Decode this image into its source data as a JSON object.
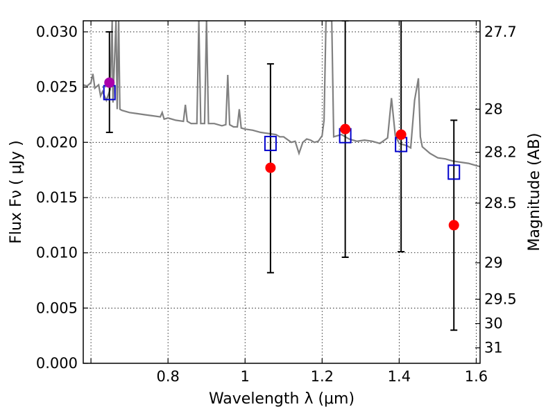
{
  "chart_data": {
    "type": "scatter",
    "xlabel": "Wavelength  λ (μm)",
    "ylabel": "Flux  Fν  ( μJy )",
    "y2label": "Magnitude (AB)",
    "xlim": [
      0.58,
      1.61
    ],
    "ylim": [
      0.0,
      0.031
    ],
    "grid": true,
    "x_ticks": [
      0.6,
      0.8,
      1.0,
      1.2,
      1.4,
      1.6
    ],
    "x_tick_labels": [
      "",
      "0.8",
      "1",
      "1.2",
      "1.4",
      "1.6"
    ],
    "y_ticks": [
      0.0,
      0.005,
      0.01,
      0.015,
      0.02,
      0.025,
      0.03
    ],
    "y_tick_labels": [
      "0.000",
      "0.005",
      "0.010",
      "0.015",
      "0.020",
      "0.025",
      "0.030"
    ],
    "mag_ticks": [
      {
        "label": "27.7",
        "flux": 0.03
      },
      {
        "label": "28",
        "flux": 0.023
      },
      {
        "label": "28.2",
        "flux": 0.0191
      },
      {
        "label": "28.5",
        "flux": 0.0145
      },
      {
        "label": "29",
        "flux": 0.0091
      },
      {
        "label": "29.5",
        "flux": 0.0058
      },
      {
        "label": "30",
        "flux": 0.0036
      },
      {
        "label": "31",
        "flux": 0.0014
      }
    ],
    "model_spectrum": {
      "color": "#808080",
      "points": [
        [
          0.58,
          0.0252
        ],
        [
          0.59,
          0.0251
        ],
        [
          0.6,
          0.0254
        ],
        [
          0.605,
          0.0262
        ],
        [
          0.61,
          0.0249
        ],
        [
          0.62,
          0.0252
        ],
        [
          0.625,
          0.0242
        ],
        [
          0.63,
          0.0246
        ],
        [
          0.64,
          0.0238
        ],
        [
          0.65,
          0.0248
        ],
        [
          0.655,
          0.031
        ],
        [
          0.657,
          0.0236
        ],
        [
          0.665,
          0.031
        ],
        [
          0.668,
          0.023
        ],
        [
          0.672,
          0.031
        ],
        [
          0.675,
          0.023
        ],
        [
          0.68,
          0.0229
        ],
        [
          0.7,
          0.0227
        ],
        [
          0.72,
          0.0226
        ],
        [
          0.74,
          0.0225
        ],
        [
          0.76,
          0.0224
        ],
        [
          0.78,
          0.0223
        ],
        [
          0.785,
          0.0227
        ],
        [
          0.79,
          0.0221
        ],
        [
          0.8,
          0.0222
        ],
        [
          0.82,
          0.022
        ],
        [
          0.84,
          0.0219
        ],
        [
          0.845,
          0.0234
        ],
        [
          0.85,
          0.0219
        ],
        [
          0.86,
          0.0217
        ],
        [
          0.875,
          0.0217
        ],
        [
          0.88,
          0.031
        ],
        [
          0.885,
          0.0217
        ],
        [
          0.895,
          0.0217
        ],
        [
          0.9,
          0.031
        ],
        [
          0.905,
          0.0217
        ],
        [
          0.92,
          0.0217
        ],
        [
          0.94,
          0.0215
        ],
        [
          0.95,
          0.0216
        ],
        [
          0.955,
          0.0261
        ],
        [
          0.96,
          0.0216
        ],
        [
          0.97,
          0.0214
        ],
        [
          0.98,
          0.0214
        ],
        [
          0.985,
          0.023
        ],
        [
          0.99,
          0.0213
        ],
        [
          1.0,
          0.0212
        ],
        [
          1.02,
          0.0211
        ],
        [
          1.04,
          0.0209
        ],
        [
          1.06,
          0.0208
        ],
        [
          1.08,
          0.0207
        ],
        [
          1.09,
          0.0205
        ],
        [
          1.1,
          0.0205
        ],
        [
          1.12,
          0.02
        ],
        [
          1.13,
          0.0201
        ],
        [
          1.14,
          0.019
        ],
        [
          1.15,
          0.02
        ],
        [
          1.16,
          0.0203
        ],
        [
          1.17,
          0.0202
        ],
        [
          1.18,
          0.02
        ],
        [
          1.19,
          0.0201
        ],
        [
          1.2,
          0.0206
        ],
        [
          1.205,
          0.022
        ],
        [
          1.21,
          0.031
        ],
        [
          1.225,
          0.031
        ],
        [
          1.23,
          0.0205
        ],
        [
          1.25,
          0.0207
        ],
        [
          1.27,
          0.0203
        ],
        [
          1.29,
          0.0201
        ],
        [
          1.31,
          0.0202
        ],
        [
          1.33,
          0.0201
        ],
        [
          1.35,
          0.0199
        ],
        [
          1.37,
          0.0204
        ],
        [
          1.38,
          0.024
        ],
        [
          1.39,
          0.0206
        ],
        [
          1.4,
          0.0199
        ],
        [
          1.42,
          0.0197
        ],
        [
          1.43,
          0.0195
        ],
        [
          1.44,
          0.0238
        ],
        [
          1.45,
          0.0258
        ],
        [
          1.455,
          0.0205
        ],
        [
          1.46,
          0.0196
        ],
        [
          1.48,
          0.019
        ],
        [
          1.5,
          0.0186
        ],
        [
          1.52,
          0.0185
        ],
        [
          1.54,
          0.0183
        ],
        [
          1.56,
          0.0182
        ],
        [
          1.58,
          0.0181
        ],
        [
          1.6,
          0.0179
        ],
        [
          1.61,
          0.0178
        ]
      ]
    },
    "model_photometry": {
      "color": "#0000cc",
      "points": [
        [
          0.648,
          0.0245
        ],
        [
          1.066,
          0.0199
        ],
        [
          1.26,
          0.0206
        ],
        [
          1.405,
          0.0198
        ],
        [
          1.542,
          0.0173
        ]
      ]
    },
    "observed": [
      {
        "x": 0.648,
        "y": 0.0254,
        "yerr_low": 0.0209,
        "yerr_high": 0.03,
        "color": "#aa00aa"
      },
      {
        "x": 1.066,
        "y": 0.0177,
        "yerr_low": 0.0082,
        "yerr_high": 0.0271,
        "color": "#ff0000"
      },
      {
        "x": 1.26,
        "y": 0.0212,
        "yerr_low": 0.0096,
        "yerr_high": 0.031,
        "color": "#ff0000"
      },
      {
        "x": 1.405,
        "y": 0.0207,
        "yerr_low": 0.0101,
        "yerr_high": 0.0313,
        "color": "#ff0000"
      },
      {
        "x": 1.542,
        "y": 0.0125,
        "yerr_low": 0.003,
        "yerr_high": 0.022,
        "color": "#ff0000"
      }
    ]
  }
}
